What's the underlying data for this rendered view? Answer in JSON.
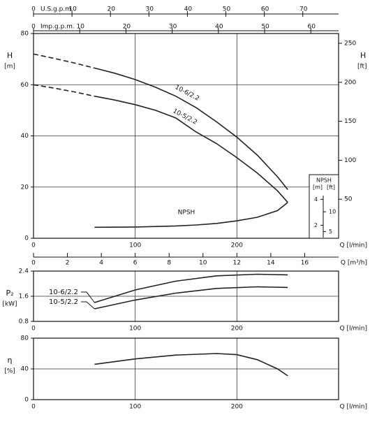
{
  "chart_data": [
    {
      "type": "line",
      "x_label": "Q [l/min]",
      "xlim": [
        0,
        300
      ],
      "xticks": [
        0,
        100,
        200
      ],
      "m3h_axis": {
        "label": "Q [m³/h]",
        "lim": [
          0,
          18
        ],
        "ticks": [
          0,
          2,
          4,
          6,
          8,
          10,
          12,
          14,
          16
        ]
      },
      "usgpm_axis": {
        "label": "U.S.g.p.m.",
        "lim": [
          0,
          79.3
        ],
        "ticks": [
          0,
          10,
          20,
          30,
          40,
          50,
          60,
          70
        ]
      },
      "impgpm_axis": {
        "label": "Imp.g.p.m.",
        "lim": [
          0,
          66
        ],
        "ticks": [
          0,
          10,
          20,
          30,
          40,
          50,
          60
        ]
      },
      "y_label": "H",
      "y_unit": "[m]",
      "ylim": [
        0,
        80
      ],
      "yticks": [
        0,
        20,
        40,
        60,
        80
      ],
      "y2_label": "H",
      "y2_unit": "[ft]",
      "y2lim": [
        0,
        262.5
      ],
      "y2ticks": [
        50,
        100,
        150,
        200,
        250
      ],
      "grid": true,
      "series": [
        {
          "dashed": true,
          "color": "#222",
          "x": [
            0,
            20,
            40,
            60
          ],
          "values": [
            72,
            70.3,
            68.5,
            66.5
          ]
        },
        {
          "name": "10-6/2.2",
          "color": "#222",
          "x": [
            60,
            80,
            100,
            120,
            140,
            160,
            180,
            200,
            220,
            240,
            250
          ],
          "values": [
            66.5,
            64.5,
            62,
            59,
            55.5,
            51,
            45.5,
            39.5,
            32.5,
            24,
            19
          ]
        },
        {
          "dashed": true,
          "color": "#222",
          "x": [
            0,
            20,
            40,
            60
          ],
          "values": [
            60,
            58.7,
            57.2,
            55.5
          ]
        },
        {
          "name": "10-5/2.2",
          "color": "#222",
          "x": [
            60,
            80,
            100,
            120,
            140,
            160,
            180,
            200,
            220,
            240,
            250
          ],
          "values": [
            55.5,
            54,
            52.2,
            50,
            47,
            41.5,
            37,
            31.5,
            25.5,
            18.5,
            14
          ]
        },
        {
          "name": "NPSH",
          "color": "#222",
          "x": [
            60,
            100,
            140,
            160,
            180,
            200,
            220,
            240,
            250
          ],
          "values": [
            4.3,
            4.4,
            4.8,
            5.2,
            5.8,
            6.8,
            8.2,
            10.8,
            14
          ]
        }
      ],
      "npsh_scale": {
        "title": "NPSH",
        "m_unit": "[m]",
        "ft_unit": "[ft]",
        "m_lim": [
          1,
          5.9
        ],
        "m_ticks": [
          2,
          4
        ],
        "ft_lim": [
          3.3,
          19.4
        ],
        "ft_ticks": [
          5,
          10
        ]
      }
    },
    {
      "type": "line",
      "x_label": "Q [l/min]",
      "xlim": [
        0,
        300
      ],
      "xticks": [
        0,
        100,
        200
      ],
      "y_label": "P₂",
      "y_unit": "[kW]",
      "ylim": [
        0.8,
        2.4
      ],
      "yticks": [
        0.8,
        1.6,
        2.4
      ],
      "grid": true,
      "series": [
        {
          "name": "10-6/2.2",
          "color": "#222",
          "x": [
            60,
            100,
            140,
            180,
            220,
            250
          ],
          "values": [
            1.4,
            1.8,
            2.08,
            2.25,
            2.3,
            2.28
          ]
        },
        {
          "name": "10-5/2.2",
          "color": "#222",
          "x": [
            60,
            100,
            140,
            180,
            220,
            250
          ],
          "values": [
            1.2,
            1.48,
            1.7,
            1.85,
            1.9,
            1.88
          ]
        }
      ]
    },
    {
      "type": "line",
      "x_label": "Q [l/min]",
      "xlim": [
        0,
        300
      ],
      "xticks": [
        0,
        100,
        200
      ],
      "y_label": "η",
      "y_unit": "[%]",
      "ylim": [
        0,
        80
      ],
      "yticks": [
        0,
        40,
        80
      ],
      "grid": true,
      "series": [
        {
          "color": "#222",
          "x": [
            60,
            100,
            140,
            180,
            200,
            220,
            240,
            250
          ],
          "values": [
            46,
            53,
            58,
            60,
            58.5,
            52,
            40,
            31
          ]
        }
      ]
    }
  ]
}
